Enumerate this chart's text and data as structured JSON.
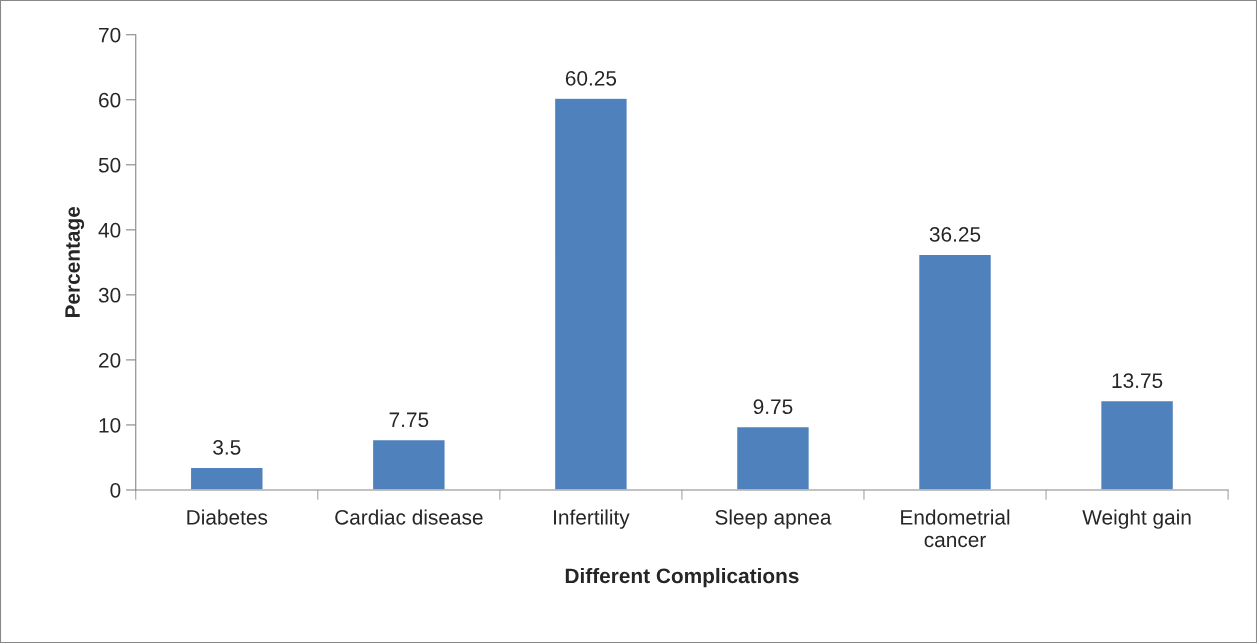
{
  "chart_data": {
    "type": "bar",
    "xlabel": "Different Complications",
    "ylabel": "Percentage",
    "categories": [
      "Diabetes",
      "Cardiac disease",
      "Infertility",
      "Sleep apnea",
      "Endometrial\ncancer",
      "Weight gain"
    ],
    "values": [
      3.5,
      7.75,
      60.25,
      9.75,
      36.25,
      13.75
    ],
    "color": "#4f81bd",
    "ylim": [
      0,
      70
    ],
    "yticks": [
      0,
      10,
      20,
      30,
      40,
      50,
      60,
      70
    ],
    "grid": false,
    "data_labels": true
  }
}
